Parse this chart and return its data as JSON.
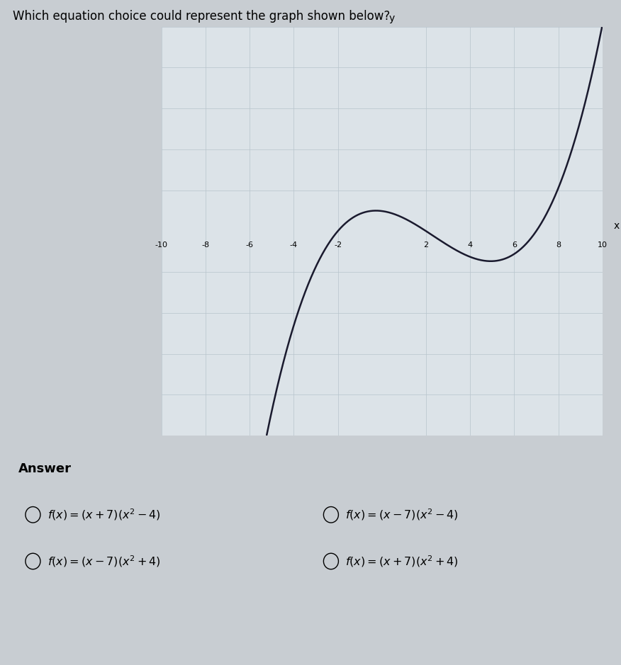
{
  "title": "Which equation choice could represent the graph shown below?",
  "title_fontsize": 12,
  "answer_label": "Answer",
  "graph_xlim": [
    -10,
    10
  ],
  "graph_ylim": [
    -10,
    10
  ],
  "graph_xticks": [
    -10,
    -8,
    -6,
    -4,
    -2,
    2,
    4,
    6,
    8,
    10
  ],
  "curve_color": "#1a1a2e",
  "axis_color": "#1a1a2e",
  "grid_color": "#b8c4cc",
  "graph_bg": "#dce3e8",
  "outer_bg": "#c8cdd2",
  "curve_linewidth": 1.8,
  "scale_factor": 0.035,
  "choice_texts": [
    "f(x) = (x + 7)(x^2 - 4)",
    "f(x) = (x - 7)(x^2 - 4)",
    "f(x) = (x - 7)(x^2 + 4)",
    "f(x) = (x + 7)(x^2 + 4)"
  ]
}
